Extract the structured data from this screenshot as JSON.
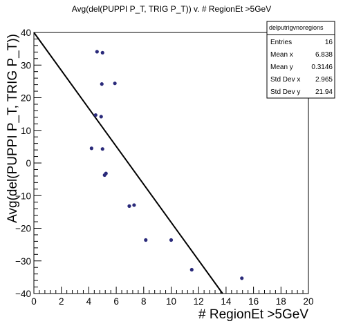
{
  "chart_data": {
    "type": "scatter",
    "title": "Avg(del(PUPPI P_T, TRIG P_T)) v. # RegionEt >5GeV",
    "xlabel": "# RegionEt >5GeV",
    "ylabel": "Avg(del(PUPPI P_T, TRIG P_T))",
    "xlim": [
      0,
      20
    ],
    "ylim": [
      -40,
      40
    ],
    "x_ticks": [
      "0",
      "2",
      "4",
      "6",
      "8",
      "10",
      "12",
      "14",
      "16",
      "18",
      "20"
    ],
    "y_ticks": [
      "40",
      "30",
      "20",
      "10",
      "0",
      "−10",
      "−20",
      "−30",
      "−40"
    ],
    "grid": false,
    "marker_color": "#2a2a7a",
    "series": [
      {
        "x": [
          4.2,
          4.5,
          4.6,
          4.9,
          4.95,
          5.0,
          5.0,
          5.15,
          5.25,
          5.9,
          6.95,
          7.3,
          8.15,
          10.0,
          11.5,
          15.15
        ],
        "y": [
          4.5,
          14.7,
          34.1,
          14.2,
          24.2,
          33.8,
          4.3,
          -3.7,
          -3.2,
          24.4,
          -13.2,
          -12.9,
          -23.6,
          -23.6,
          -32.7,
          -35.3
        ]
      }
    ],
    "fit_line": {
      "x": [
        0,
        13.75
      ],
      "y": [
        40,
        -40
      ]
    },
    "stats_box": {
      "name": "delputrigvnoregions",
      "rows": [
        {
          "key": "Entries",
          "value": "16"
        },
        {
          "key": "Mean x",
          "value": "6.838"
        },
        {
          "key": "Mean y",
          "value": "0.3146"
        },
        {
          "key": "Std Dev x",
          "value": "2.965"
        },
        {
          "key": "Std Dev y",
          "value": "21.94"
        }
      ]
    }
  }
}
